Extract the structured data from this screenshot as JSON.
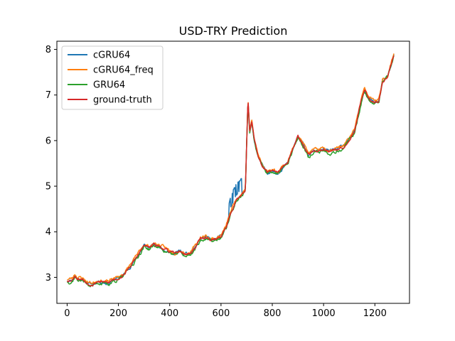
{
  "chart_data": {
    "type": "line",
    "title": "USD-TRY Prediction",
    "xlabel": "",
    "ylabel": "",
    "xlim": [
      -40,
      1335
    ],
    "ylim": [
      2.43,
      8.18
    ],
    "xticks": [
      0,
      200,
      400,
      600,
      800,
      1000,
      1200
    ],
    "yticks": [
      3,
      4,
      5,
      6,
      7,
      8
    ],
    "grid": false,
    "legend_position": "upper-left",
    "ground_truth_anchors": [
      [
        0,
        2.93
      ],
      [
        20,
        2.95
      ],
      [
        30,
        3.05
      ],
      [
        40,
        2.98
      ],
      [
        60,
        2.96
      ],
      [
        80,
        2.87
      ],
      [
        100,
        2.85
      ],
      [
        120,
        2.92
      ],
      [
        140,
        2.9
      ],
      [
        160,
        2.87
      ],
      [
        180,
        2.95
      ],
      [
        200,
        2.98
      ],
      [
        220,
        3.05
      ],
      [
        240,
        3.2
      ],
      [
        260,
        3.35
      ],
      [
        280,
        3.52
      ],
      [
        300,
        3.7
      ],
      [
        320,
        3.65
      ],
      [
        340,
        3.72
      ],
      [
        360,
        3.68
      ],
      [
        380,
        3.62
      ],
      [
        400,
        3.56
      ],
      [
        420,
        3.52
      ],
      [
        440,
        3.58
      ],
      [
        460,
        3.5
      ],
      [
        480,
        3.52
      ],
      [
        500,
        3.66
      ],
      [
        520,
        3.85
      ],
      [
        540,
        3.88
      ],
      [
        560,
        3.82
      ],
      [
        580,
        3.83
      ],
      [
        600,
        3.9
      ],
      [
        620,
        4.1
      ],
      [
        640,
        4.45
      ],
      [
        660,
        4.7
      ],
      [
        680,
        4.82
      ],
      [
        695,
        4.92
      ],
      [
        705,
        6.9
      ],
      [
        712,
        6.2
      ],
      [
        720,
        6.4
      ],
      [
        730,
        6.0
      ],
      [
        745,
        5.65
      ],
      [
        760,
        5.45
      ],
      [
        780,
        5.3
      ],
      [
        800,
        5.35
      ],
      [
        820,
        5.28
      ],
      [
        840,
        5.42
      ],
      [
        860,
        5.5
      ],
      [
        880,
        5.8
      ],
      [
        900,
        6.1
      ],
      [
        920,
        5.92
      ],
      [
        940,
        5.7
      ],
      [
        960,
        5.75
      ],
      [
        980,
        5.78
      ],
      [
        1000,
        5.82
      ],
      [
        1020,
        5.76
      ],
      [
        1040,
        5.8
      ],
      [
        1060,
        5.83
      ],
      [
        1080,
        5.88
      ],
      [
        1100,
        6.02
      ],
      [
        1120,
        6.2
      ],
      [
        1140,
        6.7
      ],
      [
        1150,
        6.95
      ],
      [
        1160,
        7.1
      ],
      [
        1180,
        6.9
      ],
      [
        1200,
        6.85
      ],
      [
        1215,
        6.85
      ],
      [
        1230,
        7.3
      ],
      [
        1250,
        7.4
      ],
      [
        1265,
        7.7
      ],
      [
        1275,
        7.9
      ]
    ],
    "series": [
      {
        "name": "cGRU64",
        "color": "#1f77b4",
        "offset": 0.0,
        "noise": 0.045,
        "seed": 11
      },
      {
        "name": "cGRU64_freq",
        "color": "#ff7f0e",
        "offset": 0.03,
        "noise": 0.045,
        "seed": 23
      },
      {
        "name": "GRU64",
        "color": "#2ca02c",
        "offset": -0.03,
        "noise": 0.05,
        "seed": 37
      },
      {
        "name": "ground-truth",
        "color": "#d62728",
        "offset": 0.0,
        "noise": 0.035,
        "seed": 53
      }
    ]
  }
}
